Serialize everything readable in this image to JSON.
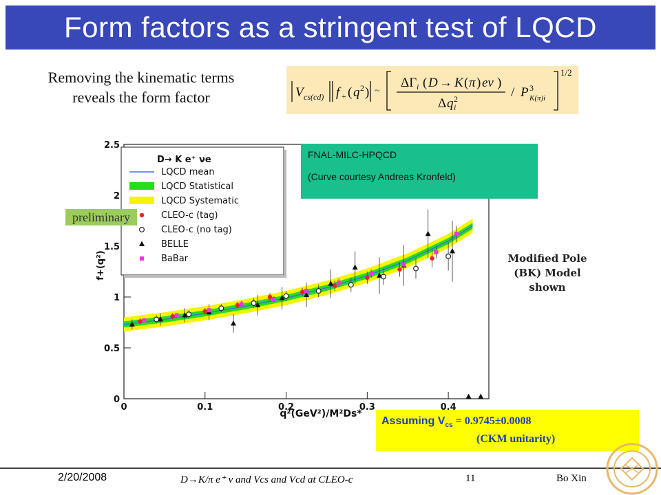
{
  "slide": {
    "title": "Form factors as a stringent test of LQCD",
    "intro_line1": "Removing the kinematic terms",
    "intro_line2": "reveals the form factor",
    "formula_text": "|Vcs(cd)| |f+(q²)| ~ [ ΔΓi(D→K(π)eν) / Δqi² / P³K(π)i ]^1/2",
    "fnal_line1": "FNAL-MILC-HPQCD",
    "fnal_line2": "(Curve courtesy Andreas Kronfeld)",
    "preliminary": "preliminary",
    "pole_line1": "Modified Pole",
    "pole_line2": "(BK) Model",
    "pole_line3": "shown",
    "assume_prefix": "Assuming V",
    "assume_sub": "cs",
    "assume_value": " = 0.9745±0.0008",
    "assume_line2": "(CKM unitarity)",
    "footer_date": "2/20/2008",
    "footer_title": "D→K/π e⁺ ν and Vcs and Vcd at CLEO-c",
    "footer_page": "11",
    "footer_author": "Bo Xin"
  },
  "colors": {
    "title_bg": "#3848b8",
    "formula_bg": "#fde9b8",
    "fnal_bg": "#19c08d",
    "prelim_bg": "#9ccc5f",
    "assume_bg": "#ffff00",
    "assume_text": "#1a3dbd",
    "lqcd_mean": "#4a6ee0",
    "lqcd_stat": "#22dd22",
    "lqcd_syst": "#f5f500",
    "cleo_tag": "#ee2222",
    "babar": "#ee33ee"
  },
  "chart_data": {
    "type": "scatter",
    "title": "D→ K e⁺ νe",
    "xlabel": "q²(GeV²)/M²Ds*",
    "ylabel": "f+(q²)",
    "xlim": [
      0,
      0.45
    ],
    "ylim": [
      0,
      2.5
    ],
    "x_ticks": [
      "0",
      "0.1",
      "0.2",
      "0.3",
      "0.4"
    ],
    "y_ticks": [
      "0",
      "0.5",
      "1",
      "1.5",
      "2",
      "2.5"
    ],
    "legend_position": "top-left",
    "legend": [
      "LQCD mean",
      "LQCD Statistical",
      "LQCD Systematic",
      "CLEO-c (tag)",
      "CLEO-c (no tag)",
      "BELLE",
      "BaBar"
    ],
    "band": {
      "x": [
        0.0,
        0.05,
        0.1,
        0.15,
        0.2,
        0.25,
        0.3,
        0.35,
        0.4,
        0.43
      ],
      "mean": [
        0.73,
        0.78,
        0.84,
        0.91,
        0.99,
        1.09,
        1.21,
        1.36,
        1.55,
        1.7
      ],
      "stat": 0.03,
      "syst": 0.07
    },
    "series": [
      {
        "name": "CLEO-c (tag)",
        "marker": "circle-filled",
        "x": [
          0.02,
          0.06,
          0.1,
          0.14,
          0.18,
          0.22,
          0.26,
          0.3,
          0.34,
          0.38
        ],
        "y": [
          0.76,
          0.81,
          0.86,
          0.92,
          1.0,
          1.05,
          1.11,
          1.19,
          1.27,
          1.38
        ],
        "err": [
          0.03,
          0.03,
          0.03,
          0.03,
          0.04,
          0.04,
          0.05,
          0.06,
          0.07,
          0.09
        ]
      },
      {
        "name": "CLEO-c (no tag)",
        "marker": "circle-open",
        "x": [
          0.04,
          0.08,
          0.12,
          0.16,
          0.2,
          0.24,
          0.28,
          0.32,
          0.36,
          0.4
        ],
        "y": [
          0.78,
          0.83,
          0.89,
          0.94,
          1.01,
          1.06,
          1.12,
          1.2,
          1.28,
          1.4
        ],
        "err": [
          0.04,
          0.04,
          0.04,
          0.05,
          0.05,
          0.06,
          0.07,
          0.08,
          0.1,
          0.14
        ]
      },
      {
        "name": "BELLE",
        "marker": "triangle",
        "x": [
          0.01,
          0.045,
          0.075,
          0.105,
          0.135,
          0.165,
          0.195,
          0.225,
          0.255,
          0.285,
          0.315,
          0.345,
          0.375,
          0.405,
          0.425,
          0.44
        ],
        "y": [
          0.73,
          0.78,
          0.82,
          0.85,
          0.74,
          0.92,
          0.99,
          1.02,
          1.13,
          1.29,
          1.21,
          1.31,
          1.62,
          1.45,
          0.02,
          0.02
        ],
        "err": [
          0.05,
          0.06,
          0.07,
          0.08,
          0.09,
          0.1,
          0.11,
          0.12,
          0.14,
          0.16,
          0.18,
          0.2,
          0.24,
          0.3,
          0.0,
          0.0
        ]
      },
      {
        "name": "BaBar",
        "marker": "square",
        "x": [
          0.025,
          0.065,
          0.105,
          0.145,
          0.185,
          0.225,
          0.265,
          0.305,
          0.345,
          0.385,
          0.41
        ],
        "y": [
          0.77,
          0.82,
          0.87,
          0.93,
          0.98,
          1.06,
          1.14,
          1.23,
          1.32,
          1.44,
          1.62
        ],
        "err": [
          0.02,
          0.02,
          0.02,
          0.03,
          0.03,
          0.03,
          0.04,
          0.04,
          0.05,
          0.06,
          0.08
        ]
      }
    ]
  }
}
